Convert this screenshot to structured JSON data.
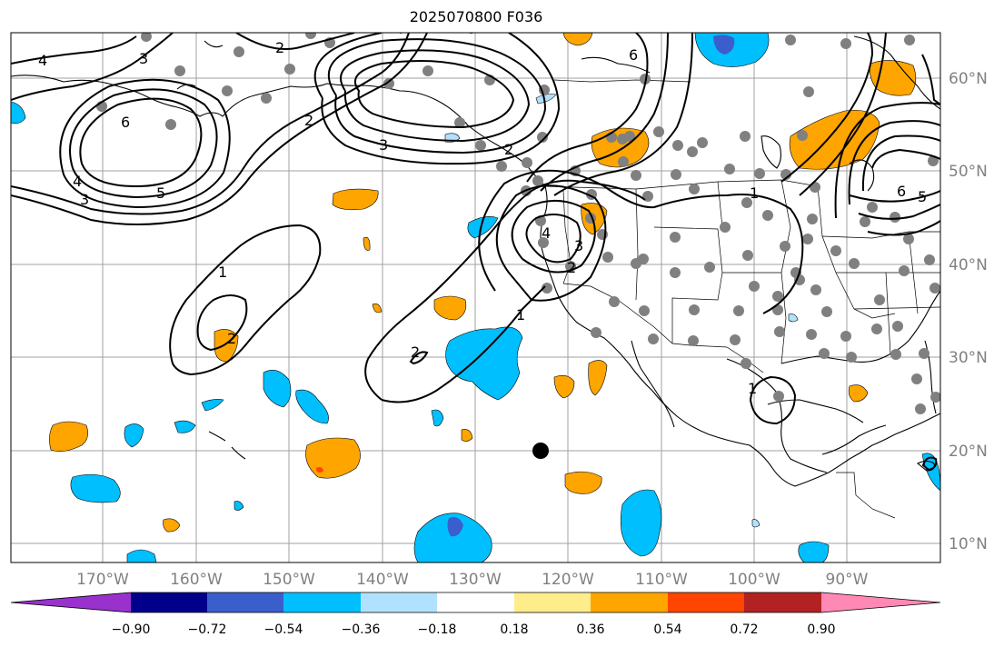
{
  "title": "2025070800 F036",
  "axes": {
    "lon_labels": [
      "170°W",
      "160°W",
      "150°W",
      "140°W",
      "130°W",
      "120°W",
      "110°W",
      "100°W",
      "90°W"
    ],
    "lat_labels": [
      "60°N",
      "50°N",
      "40°N",
      "30°N",
      "20°N",
      "10°N"
    ]
  },
  "colorbar": {
    "colors": [
      "#9932cc",
      "#00008b",
      "#3a5fcd",
      "#00bfff",
      "#b0e2ff",
      "#ffffff",
      "#ffec8b",
      "#ffa500",
      "#ff4500",
      "#b22222",
      "#ff89b4"
    ],
    "labels": [
      "−0.90",
      "−0.72",
      "−0.54",
      "−0.36",
      "−0.18",
      "0.18",
      "0.36",
      "0.54",
      "0.72",
      "0.90"
    ]
  },
  "contour_labels": [
    "4",
    "3",
    "2",
    "6",
    "4",
    "3",
    "5",
    "2",
    "3",
    "2",
    "6",
    "1",
    "4",
    "3",
    "2",
    "1",
    "2",
    "1",
    "2",
    "1",
    "6",
    "5"
  ],
  "colors": {
    "grid": "#a0a0a0",
    "coast": "#000000",
    "station": "#808080",
    "orange": "#ffa500",
    "blue": "#00bfff"
  }
}
